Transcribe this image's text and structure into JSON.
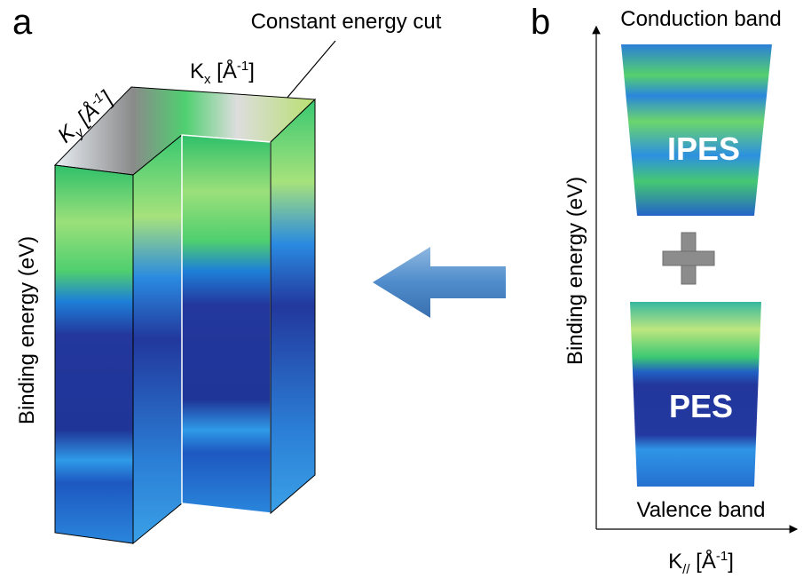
{
  "panel_a": {
    "label": "a",
    "annotation": "Constant energy cut",
    "ky_label": {
      "base": "K",
      "sub": "y",
      "rest": " [Å",
      "sup": "-1",
      "end": "]"
    },
    "kx_label": {
      "base": "K",
      "sub": "x",
      "rest": " [Å",
      "sup": "-1",
      "end": "]"
    },
    "y_label": "Binding energy (eV)"
  },
  "panel_b": {
    "label": "b",
    "top_label": "Conduction band",
    "ipes": "IPES",
    "pes": "PES",
    "bottom_label": "Valence band",
    "y_label": "Binding energy (eV)",
    "x_label": {
      "base": "K",
      "sub": "//",
      "rest": " [Å",
      "sup": "-1",
      "end": "]"
    }
  }
}
